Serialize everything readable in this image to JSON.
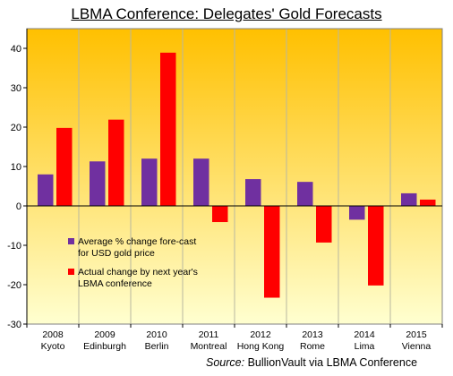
{
  "chart_data": {
    "type": "bar",
    "title": "LBMA Conference:  Delegates' Gold Forecasts",
    "categories": [
      {
        "year": "2008",
        "city": "Kyoto"
      },
      {
        "year": "2009",
        "city": "Edinburgh"
      },
      {
        "year": "2010",
        "city": "Berlin"
      },
      {
        "year": "2011",
        "city": "Montreal"
      },
      {
        "year": "2012",
        "city": "Hong Kong"
      },
      {
        "year": "2013",
        "city": "Rome"
      },
      {
        "year": "2014",
        "city": "Lima"
      },
      {
        "year": "2015",
        "city": "Vienna"
      }
    ],
    "series": [
      {
        "name": "Average % change fore-cast for USD gold price",
        "name_lines": [
          "Average % change fore-cast",
          "for USD gold price"
        ],
        "color": "#7030a0",
        "values": [
          8,
          11.3,
          12,
          12,
          6.8,
          6.1,
          -3.5,
          3.2
        ]
      },
      {
        "name": "Actual change by next year's LBMA conference",
        "name_lines": [
          "Actual change by next year's",
          "LBMA conference"
        ],
        "color": "#ff0000",
        "values": [
          19.8,
          21.9,
          38.9,
          -4.1,
          -23.3,
          -9.3,
          -20.2,
          1.6
        ]
      }
    ],
    "ylim": [
      -30,
      45
    ],
    "yticks": [
      -30,
      -20,
      -10,
      0,
      10,
      20,
      30,
      40
    ],
    "xlabel": "",
    "ylabel": "",
    "grid": "vertical",
    "legend": "bottom-left",
    "background_gradient": [
      "#ffc000",
      "#ffffd0"
    ]
  },
  "source": {
    "label": "Source:",
    "text": "BullionVault via LBMA Conference"
  }
}
